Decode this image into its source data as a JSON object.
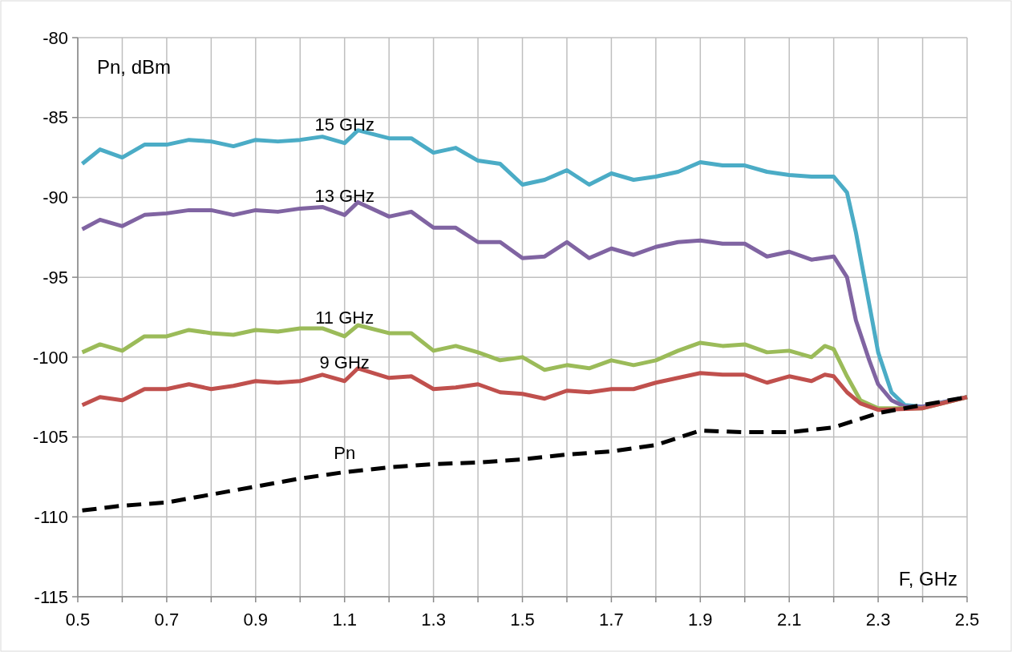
{
  "chart_data": {
    "type": "line",
    "xlabel": "F, GHz",
    "ylabel": "Pn, dBm",
    "xlim": [
      0.5,
      2.5
    ],
    "xticks": [
      0.5,
      {
        "value": 0.6,
        "label": null
      },
      0.7,
      {
        "value": 0.8,
        "label": null
      },
      0.9,
      {
        "value": 1.0,
        "label": null
      },
      1.1,
      {
        "value": 1.2,
        "label": null
      },
      1.3,
      {
        "value": 1.4,
        "label": null
      },
      1.5,
      {
        "value": 1.6,
        "label": null
      },
      1.7,
      {
        "value": 1.8,
        "label": null
      },
      1.9,
      {
        "value": 2.0,
        "label": null
      },
      2.1,
      {
        "value": 2.2,
        "label": null
      },
      2.3,
      {
        "value": 2.4,
        "label": null
      },
      2.5
    ],
    "ylim": [
      -115,
      -80
    ],
    "yticks": [
      -115,
      -110,
      -105,
      -100,
      -95,
      -90,
      -85,
      -80
    ],
    "grid": true,
    "series": [
      {
        "name": "15 GHz",
        "color": "#4bacc6",
        "x": [
          0.51,
          0.55,
          0.6,
          0.65,
          0.7,
          0.75,
          0.8,
          0.85,
          0.9,
          0.95,
          1.0,
          1.05,
          1.1,
          1.13,
          1.2,
          1.25,
          1.3,
          1.35,
          1.4,
          1.45,
          1.5,
          1.55,
          1.6,
          1.65,
          1.7,
          1.75,
          1.8,
          1.85,
          1.9,
          1.95,
          2.0,
          2.05,
          2.1,
          2.15,
          2.2,
          2.23,
          2.25,
          2.28,
          2.3,
          2.33,
          2.36,
          2.4,
          2.45,
          2.5
        ],
        "values": [
          -87.9,
          -87.0,
          -87.5,
          -86.7,
          -86.7,
          -86.4,
          -86.5,
          -86.8,
          -86.4,
          -86.5,
          -86.4,
          -86.2,
          -86.6,
          -85.8,
          -86.3,
          -86.3,
          -87.2,
          -86.9,
          -87.7,
          -87.9,
          -89.2,
          -88.9,
          -88.3,
          -89.2,
          -88.5,
          -88.9,
          -88.7,
          -88.4,
          -87.8,
          -88.0,
          -88.0,
          -88.4,
          -88.6,
          -88.7,
          -88.7,
          -89.7,
          -92.2,
          -96.7,
          -99.7,
          -102.2,
          -103.0,
          -103.1,
          -102.8,
          -102.5
        ]
      },
      {
        "name": "13 GHz",
        "color": "#8064a2",
        "x": [
          0.51,
          0.55,
          0.6,
          0.65,
          0.7,
          0.75,
          0.8,
          0.85,
          0.9,
          0.95,
          1.0,
          1.05,
          1.1,
          1.13,
          1.2,
          1.25,
          1.3,
          1.35,
          1.4,
          1.45,
          1.5,
          1.55,
          1.6,
          1.65,
          1.7,
          1.75,
          1.8,
          1.85,
          1.9,
          1.95,
          2.0,
          2.05,
          2.1,
          2.15,
          2.2,
          2.23,
          2.25,
          2.28,
          2.3,
          2.33,
          2.36,
          2.4,
          2.5
        ],
        "values": [
          -92.0,
          -91.4,
          -91.8,
          -91.1,
          -91.0,
          -90.8,
          -90.8,
          -91.1,
          -90.8,
          -90.9,
          -90.7,
          -90.6,
          -91.1,
          -90.3,
          -91.2,
          -90.9,
          -91.9,
          -91.9,
          -92.8,
          -92.8,
          -93.8,
          -93.7,
          -92.8,
          -93.8,
          -93.2,
          -93.6,
          -93.1,
          -92.8,
          -92.7,
          -92.9,
          -92.9,
          -93.7,
          -93.4,
          -93.9,
          -93.7,
          -95.0,
          -97.7,
          -100.2,
          -101.7,
          -102.7,
          -103.1,
          -103.1,
          -102.5
        ]
      },
      {
        "name": "11 GHz",
        "color": "#9bbb59",
        "x": [
          0.51,
          0.55,
          0.6,
          0.65,
          0.7,
          0.75,
          0.8,
          0.85,
          0.9,
          0.95,
          1.0,
          1.05,
          1.1,
          1.13,
          1.2,
          1.25,
          1.3,
          1.35,
          1.4,
          1.45,
          1.5,
          1.55,
          1.6,
          1.65,
          1.7,
          1.75,
          1.8,
          1.85,
          1.9,
          1.95,
          2.0,
          2.05,
          2.1,
          2.15,
          2.18,
          2.2,
          2.23,
          2.26,
          2.3,
          2.4,
          2.5
        ],
        "values": [
          -99.7,
          -99.2,
          -99.6,
          -98.7,
          -98.7,
          -98.3,
          -98.5,
          -98.6,
          -98.3,
          -98.4,
          -98.2,
          -98.2,
          -98.7,
          -98.0,
          -98.5,
          -98.5,
          -99.6,
          -99.3,
          -99.7,
          -100.2,
          -100.0,
          -100.8,
          -100.5,
          -100.7,
          -100.2,
          -100.5,
          -100.2,
          -99.6,
          -99.1,
          -99.3,
          -99.2,
          -99.7,
          -99.6,
          -100.0,
          -99.3,
          -99.5,
          -101.2,
          -102.7,
          -103.2,
          -103.2,
          -102.5
        ]
      },
      {
        "name": "9 GHz",
        "color": "#c0504d",
        "x": [
          0.51,
          0.55,
          0.6,
          0.65,
          0.7,
          0.75,
          0.8,
          0.85,
          0.9,
          0.95,
          1.0,
          1.05,
          1.1,
          1.13,
          1.2,
          1.25,
          1.3,
          1.35,
          1.4,
          1.45,
          1.5,
          1.55,
          1.6,
          1.65,
          1.7,
          1.75,
          1.8,
          1.85,
          1.9,
          1.95,
          2.0,
          2.05,
          2.1,
          2.15,
          2.18,
          2.2,
          2.23,
          2.26,
          2.3,
          2.4,
          2.5
        ],
        "values": [
          -103.0,
          -102.5,
          -102.7,
          -102.0,
          -102.0,
          -101.7,
          -102.0,
          -101.8,
          -101.5,
          -101.6,
          -101.5,
          -101.1,
          -101.5,
          -100.7,
          -101.3,
          -101.2,
          -102.0,
          -101.9,
          -101.7,
          -102.2,
          -102.3,
          -102.6,
          -102.1,
          -102.2,
          -102.0,
          -102.0,
          -101.6,
          -101.3,
          -101.0,
          -101.1,
          -101.1,
          -101.6,
          -101.2,
          -101.5,
          -101.1,
          -101.2,
          -102.2,
          -102.9,
          -103.3,
          -103.2,
          -102.5
        ]
      },
      {
        "name": "Pn",
        "color": "#000000",
        "line_style": "dashed",
        "x": [
          0.51,
          0.6,
          0.7,
          0.8,
          0.9,
          1.0,
          1.1,
          1.2,
          1.3,
          1.4,
          1.5,
          1.6,
          1.7,
          1.8,
          1.9,
          2.0,
          2.1,
          2.2,
          2.3,
          2.4,
          2.5
        ],
        "values": [
          -109.6,
          -109.3,
          -109.1,
          -108.6,
          -108.1,
          -107.6,
          -107.2,
          -106.9,
          -106.7,
          -106.6,
          -106.4,
          -106.1,
          -105.9,
          -105.5,
          -104.6,
          -104.7,
          -104.7,
          -104.4,
          -103.5,
          -103.0,
          -102.5
        ]
      }
    ]
  }
}
